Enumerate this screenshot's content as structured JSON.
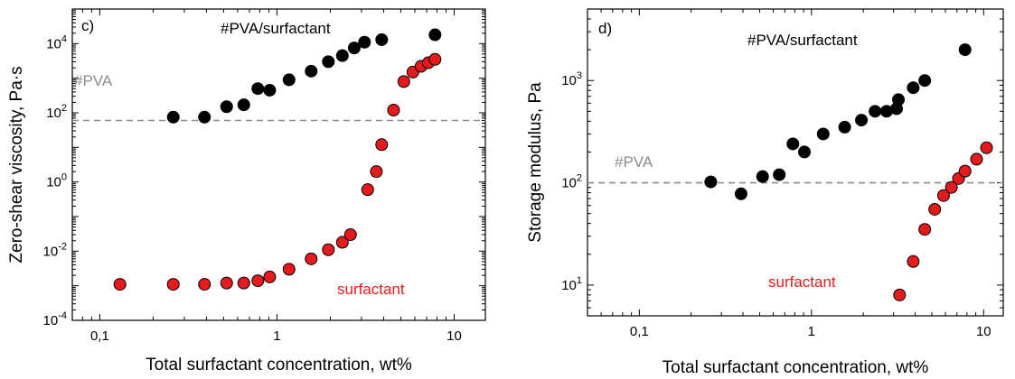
{
  "colors": {
    "black_series": "#000000",
    "red_series": "#e41a1c",
    "reference_line": "#8c8c8c"
  },
  "chart_data": [
    {
      "type": "scatter",
      "panel_label": "c)",
      "xlabel": "Total surfactant concentration, wt%",
      "ylabel": "Zero-shear viscosity, Pa·s",
      "x_scale": "log",
      "y_scale": "log",
      "xlim": [
        0.07,
        15
      ],
      "ylim": [
        0.0001,
        100000
      ],
      "x_ticks": [
        {
          "value": 0.1,
          "label": "0,1"
        },
        {
          "value": 1,
          "label": "1"
        },
        {
          "value": 10,
          "label": "10"
        }
      ],
      "y_ticks": [
        {
          "value": 0.0001,
          "base": "10",
          "exp": "-4"
        },
        {
          "value": 0.01,
          "base": "10",
          "exp": "-2"
        },
        {
          "value": 1,
          "base": "10",
          "exp": "0"
        },
        {
          "value": 100,
          "base": "10",
          "exp": "2"
        },
        {
          "value": 10000,
          "base": "10",
          "exp": "4"
        }
      ],
      "reference_line": {
        "label": "#PVA",
        "y": 60
      },
      "grid": false,
      "series": [
        {
          "name": "#PVA/surfactant",
          "color": "#000000",
          "points": [
            [
              0.26,
              75
            ],
            [
              0.39,
              75
            ],
            [
              0.52,
              150
            ],
            [
              0.65,
              170
            ],
            [
              0.78,
              500
            ],
            [
              0.91,
              450
            ],
            [
              1.17,
              900
            ],
            [
              1.56,
              1600
            ],
            [
              1.95,
              3000
            ],
            [
              2.34,
              4500
            ],
            [
              2.73,
              7500
            ],
            [
              3.12,
              11000
            ],
            [
              3.9,
              13000
            ],
            [
              7.8,
              18000
            ]
          ]
        },
        {
          "name": "surfactant",
          "color": "#e41a1c",
          "points": [
            [
              0.13,
              0.0011
            ],
            [
              0.26,
              0.0011
            ],
            [
              0.39,
              0.0011
            ],
            [
              0.52,
              0.0012
            ],
            [
              0.65,
              0.0012
            ],
            [
              0.78,
              0.0014
            ],
            [
              0.91,
              0.0018
            ],
            [
              1.17,
              0.003
            ],
            [
              1.56,
              0.006
            ],
            [
              1.95,
              0.011
            ],
            [
              2.34,
              0.018
            ],
            [
              2.6,
              0.03
            ],
            [
              3.25,
              0.6
            ],
            [
              3.64,
              2
            ],
            [
              3.9,
              12
            ],
            [
              4.55,
              120
            ],
            [
              5.2,
              800
            ],
            [
              5.85,
              1500
            ],
            [
              6.5,
              2200
            ],
            [
              7.15,
              2800
            ],
            [
              7.8,
              3500
            ]
          ]
        }
      ]
    },
    {
      "type": "scatter",
      "panel_label": "d)",
      "xlabel": "Total surfactant concentration, wt%",
      "ylabel": "Storage modulus, Pa",
      "x_scale": "log",
      "y_scale": "log",
      "xlim": [
        0.05,
        13
      ],
      "ylim": [
        5,
        5000
      ],
      "x_ticks": [
        {
          "value": 0.1,
          "label": "0,1"
        },
        {
          "value": 1,
          "label": "1"
        },
        {
          "value": 10,
          "label": "10"
        }
      ],
      "y_ticks": [
        {
          "value": 10,
          "base": "10",
          "exp": "1"
        },
        {
          "value": 100,
          "base": "10",
          "exp": "2"
        },
        {
          "value": 1000,
          "base": "10",
          "exp": "3"
        }
      ],
      "reference_line": {
        "label": "#PVA",
        "y": 100
      },
      "grid": false,
      "series": [
        {
          "name": "#PVA/surfactant",
          "color": "#000000",
          "points": [
            [
              0.26,
              102
            ],
            [
              0.39,
              78
            ],
            [
              0.52,
              115
            ],
            [
              0.65,
              120
            ],
            [
              0.78,
              240
            ],
            [
              0.91,
              200
            ],
            [
              1.17,
              300
            ],
            [
              1.56,
              350
            ],
            [
              1.95,
              410
            ],
            [
              2.34,
              500
            ],
            [
              2.73,
              500
            ],
            [
              3.12,
              530
            ],
            [
              3.2,
              650
            ],
            [
              3.9,
              850
            ],
            [
              4.55,
              1000
            ],
            [
              7.8,
              2000
            ]
          ]
        },
        {
          "name": "surfactant",
          "color": "#e41a1c",
          "points": [
            [
              3.25,
              8
            ],
            [
              3.9,
              17
            ],
            [
              4.55,
              35
            ],
            [
              5.2,
              55
            ],
            [
              5.85,
              75
            ],
            [
              6.5,
              90
            ],
            [
              7.15,
              110
            ],
            [
              7.8,
              130
            ],
            [
              9.1,
              170
            ],
            [
              10.4,
              220
            ]
          ]
        }
      ]
    }
  ]
}
